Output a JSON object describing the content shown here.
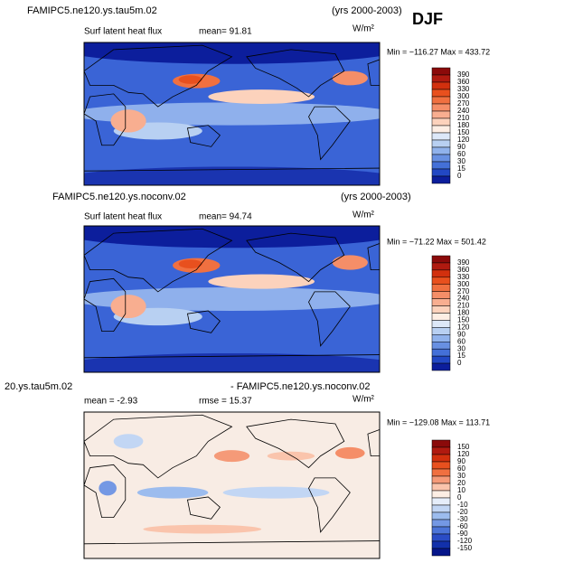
{
  "figure_title": "DJF",
  "panels": [
    {
      "title_left": "FAMIPC5.ne120.ys.tau5m.02",
      "title_right": "(yrs 2000-2003)",
      "subtitle": "Surf latent heat flux",
      "stat1": "mean=  91.81",
      "units": "W/m²",
      "min_max": "Min = −116.27  Max = 433.72",
      "colorbar": {
        "labels": [
          390,
          360,
          330,
          300,
          270,
          240,
          210,
          180,
          150,
          120,
          90,
          60,
          30,
          15,
          0
        ],
        "colors": [
          "#8b0a0a",
          "#b01a10",
          "#d2300e",
          "#e8501e",
          "#f07040",
          "#f58e68",
          "#f8ae90",
          "#fcd2bc",
          "#fdeee4",
          "#dde8f8",
          "#b8d0f2",
          "#90b2ec",
          "#6890e2",
          "#4470d8",
          "#2248c4",
          "#0c1e9c"
        ]
      }
    },
    {
      "title_left": "FAMIPC5.ne120.ys.noconv.02",
      "title_right": "(yrs 2000-2003)",
      "subtitle": "Surf latent heat flux",
      "stat1": "mean=  94.74",
      "units": "W/m²",
      "min_max": "Min = −71.22  Max = 501.42",
      "colorbar": {
        "labels": [
          390,
          360,
          330,
          300,
          270,
          240,
          210,
          180,
          150,
          120,
          90,
          60,
          30,
          15,
          0
        ],
        "colors": [
          "#8b0a0a",
          "#b01a10",
          "#d2300e",
          "#e8501e",
          "#f07040",
          "#f58e68",
          "#f8ae90",
          "#fcd2bc",
          "#fdeee4",
          "#dde8f8",
          "#b8d0f2",
          "#90b2ec",
          "#6890e2",
          "#4470d8",
          "#2248c4",
          "#0c1e9c"
        ]
      }
    },
    {
      "title_left": "20.ys.tau5m.02",
      "title_right": "- FAMIPC5.ne120.ys.noconv.02",
      "subtitle": "mean =  -2.93",
      "stat1": "rmse =  15.37",
      "units": "W/m²",
      "min_max": "Min = −129.08  Max = 113.71",
      "colorbar": {
        "labels": [
          150,
          120,
          90,
          60,
          30,
          20,
          10,
          0,
          -10,
          -20,
          -30,
          -60,
          -90,
          -120,
          -150
        ],
        "colors": [
          "#8b0a0a",
          "#b01a10",
          "#d2300e",
          "#e8501e",
          "#f07040",
          "#f59a78",
          "#fac4ac",
          "#fdeee4",
          "#e6eefa",
          "#c2d6f4",
          "#9cbcee",
          "#7498e4",
          "#4c74d8",
          "#2a4cc6",
          "#1230aa",
          "#06168a"
        ]
      }
    }
  ]
}
